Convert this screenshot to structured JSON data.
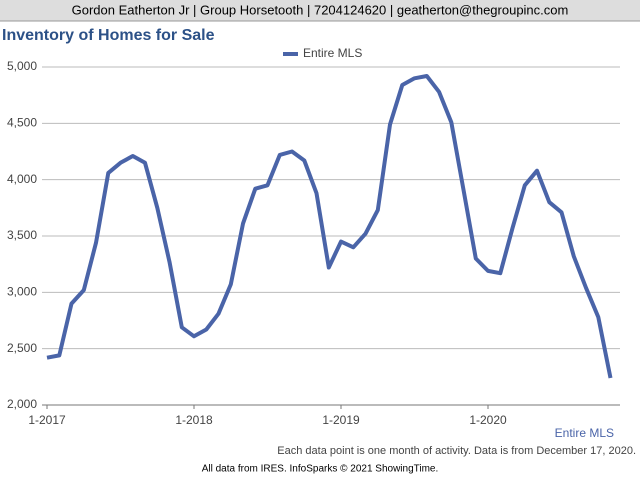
{
  "header": "Gordon Eatherton Jr | Group Horsetooth | 7204124620 | geatherton@thegroupinc.com",
  "chart_data": {
    "type": "line",
    "title": "Inventory of Homes for Sale",
    "categories": [
      "1-2017",
      null,
      null,
      null,
      null,
      null,
      null,
      null,
      null,
      null,
      null,
      null,
      "1-2018",
      null,
      null,
      null,
      null,
      null,
      null,
      null,
      null,
      null,
      null,
      null,
      "1-2019",
      null,
      null,
      null,
      null,
      null,
      null,
      null,
      null,
      null,
      null,
      null,
      "1-2020",
      null,
      null,
      null,
      null,
      null,
      null,
      null,
      null,
      null,
      null
    ],
    "series": [
      {
        "name": "Entire MLS",
        "color": "#4a64a8",
        "values": [
          2420,
          2440,
          2900,
          3020,
          3440,
          4060,
          4150,
          4210,
          4150,
          3750,
          3270,
          2690,
          2610,
          2670,
          2810,
          3070,
          3610,
          3920,
          3950,
          4220,
          4250,
          4170,
          3880,
          3220,
          3450,
          3400,
          3520,
          3730,
          4490,
          4840,
          4900,
          4920,
          4780,
          4510,
          3910,
          3300,
          3190,
          3170,
          3570,
          3950,
          4080,
          3800,
          3710,
          3320,
          3040,
          2780,
          2240
        ]
      }
    ],
    "ylim": [
      2000,
      5000
    ],
    "yticks": [
      {
        "value": 2000,
        "label": "2,000"
      },
      {
        "value": 2500,
        "label": "2,500"
      },
      {
        "value": 3000,
        "label": "3,000"
      },
      {
        "value": 3500,
        "label": "3,500"
      },
      {
        "value": 4000,
        "label": "4,000"
      },
      {
        "value": 4500,
        "label": "4,500"
      },
      {
        "value": 5000,
        "label": "5,000"
      }
    ],
    "grid": true,
    "legend": "top",
    "x_label": "Entire MLS",
    "note": "Each data point is one month of activity. Data is from December 17, 2020."
  },
  "footer": "All data from IRES. InfoSparks © 2021 ShowingTime."
}
